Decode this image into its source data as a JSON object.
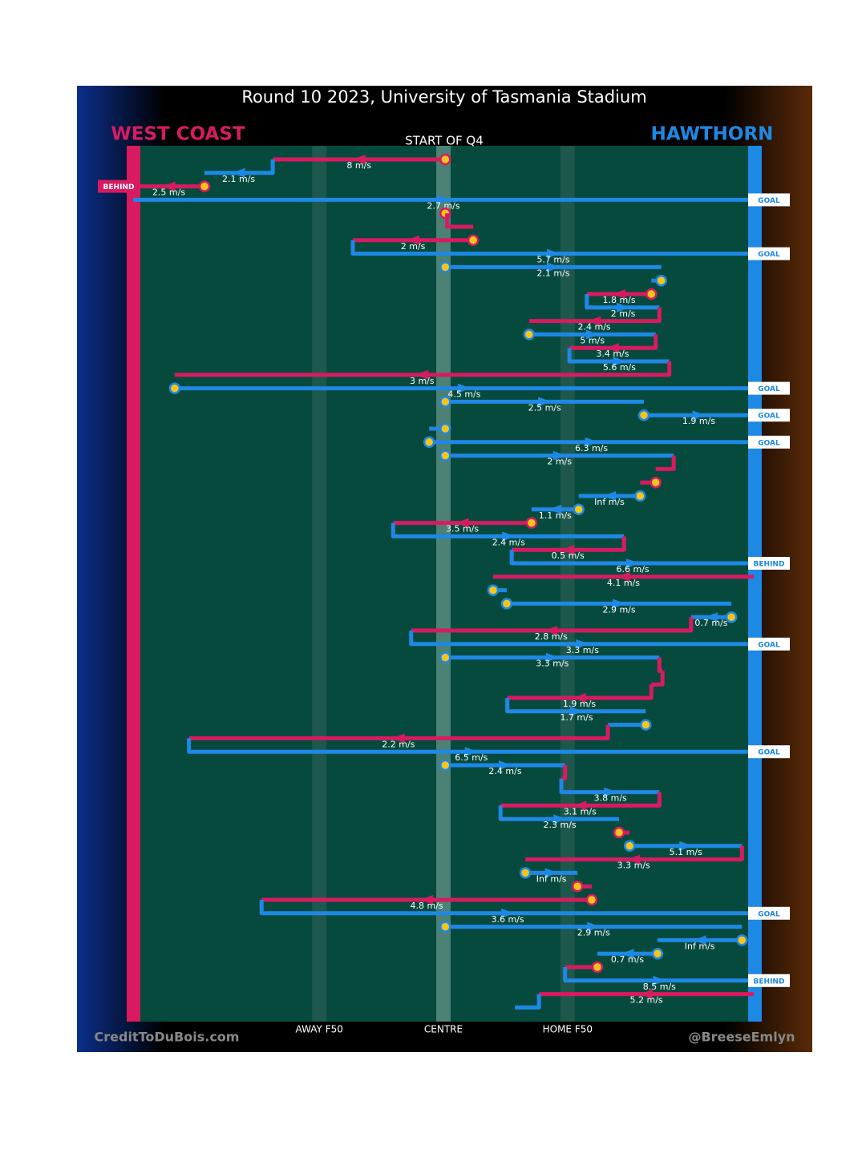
{
  "chart_data": {
    "type": "possession-flow",
    "title": "Round 10 2023, University of Tasmania Stadium",
    "subtitle": "START OF Q4",
    "teams": [
      {
        "name": "WEST COAST",
        "color": "#d81b60"
      },
      {
        "name": "HAWTHORN",
        "color": "#1e88e5"
      }
    ],
    "xlim": [
      0,
      100
    ],
    "xticks": [
      {
        "value": 30,
        "label": "AWAY F50"
      },
      {
        "value": 50,
        "label": "CENTRE"
      },
      {
        "value": 70,
        "label": "HOME F50"
      }
    ],
    "credits": [
      "CreditToDuBois.com",
      "@BreeseEmlyn"
    ],
    "segments": [
      {
        "team": 0,
        "from": 50.3,
        "to": 22.5,
        "speed": "8 m/s",
        "marker": true
      },
      {
        "team": 1,
        "from": 22.5,
        "to": 11.5,
        "speed": "2.1 m/s"
      },
      {
        "team": 0,
        "from": 11.5,
        "to": 0,
        "speed": "2.5 m/s",
        "marker": true,
        "outcome": "BEHIND"
      },
      {
        "team": 1,
        "from": 0,
        "to": 100,
        "speed": "2.7 m/s",
        "outcome": "GOAL"
      },
      {
        "team": 0,
        "from": 50.3,
        "to": 50.6,
        "marker": true
      },
      {
        "team": 0,
        "from": 50.6,
        "to": 54.8
      },
      {
        "team": 0,
        "from": 54.8,
        "to": 35.4,
        "speed": "2 m/s",
        "marker": true
      },
      {
        "team": 1,
        "from": 35.4,
        "to": 100,
        "speed": "5.7 m/s",
        "outcome": "GOAL"
      },
      {
        "team": 1,
        "from": 50.3,
        "to": 85.1,
        "speed": "2.1 m/s",
        "marker": true
      },
      {
        "team": 1,
        "from": 85.1,
        "to": 83.5,
        "marker": true
      },
      {
        "team": 0,
        "from": 83.5,
        "to": 73.1,
        "speed": "1.8 m/s",
        "marker": true
      },
      {
        "team": 1,
        "from": 73.1,
        "to": 84.8,
        "speed": "2 m/s"
      },
      {
        "team": 0,
        "from": 84.8,
        "to": 63.8,
        "speed": "2.4 m/s"
      },
      {
        "team": 1,
        "from": 63.8,
        "to": 84.2,
        "speed": "5 m/s",
        "marker": true
      },
      {
        "team": 0,
        "from": 84.2,
        "to": 70.3,
        "speed": "3.4 m/s"
      },
      {
        "team": 1,
        "from": 70.3,
        "to": 86.4,
        "speed": "5.6 m/s"
      },
      {
        "team": 0,
        "from": 86.4,
        "to": 6.7,
        "speed": "3 m/s"
      },
      {
        "team": 1,
        "from": 6.7,
        "to": 100,
        "speed": "4.5 m/s",
        "marker": true,
        "outcome": "GOAL"
      },
      {
        "team": 1,
        "from": 50.3,
        "to": 82.3,
        "speed": "2.5 m/s",
        "marker": true
      },
      {
        "team": 1,
        "from": 82.3,
        "to": 100,
        "speed": "1.9 m/s",
        "marker": true,
        "outcome": "GOAL"
      },
      {
        "team": 1,
        "from": 50.3,
        "to": 47.7,
        "marker": true
      },
      {
        "team": 1,
        "from": 47.7,
        "to": 100,
        "speed": "6.3 m/s",
        "marker": true,
        "outcome": "GOAL"
      },
      {
        "team": 1,
        "from": 50.3,
        "to": 87.1,
        "speed": "2 m/s",
        "marker": true
      },
      {
        "team": 0,
        "from": 87.1,
        "to": 84.2
      },
      {
        "team": 0,
        "from": 84.2,
        "to": 81.7,
        "marker": true
      },
      {
        "team": 1,
        "from": 81.7,
        "to": 71.8,
        "speed": "Inf m/s",
        "marker": true
      },
      {
        "team": 1,
        "from": 71.8,
        "to": 64.2,
        "speed": "1.1 m/s",
        "marker": true
      },
      {
        "team": 0,
        "from": 64.2,
        "to": 41.9,
        "speed": "3.5 m/s",
        "marker": true
      },
      {
        "team": 1,
        "from": 41.9,
        "to": 79.1,
        "speed": "2.4 m/s"
      },
      {
        "team": 0,
        "from": 79.1,
        "to": 61,
        "speed": "0.5 m/s"
      },
      {
        "team": 1,
        "from": 61,
        "to": 100,
        "speed": "6.6 m/s",
        "outcome": "BEHIND"
      },
      {
        "team": 0,
        "from": 100,
        "to": 58,
        "speed": "4.1 m/s"
      },
      {
        "team": 1,
        "from": 58,
        "to": 60.2,
        "marker": true
      },
      {
        "team": 1,
        "from": 60.2,
        "to": 96.4,
        "speed": "2.9 m/s",
        "marker": true
      },
      {
        "team": 1,
        "from": 96.4,
        "to": 89.9,
        "speed": "0.7 m/s",
        "marker": true
      },
      {
        "team": 0,
        "from": 89.9,
        "to": 44.8,
        "speed": "2.8 m/s"
      },
      {
        "team": 1,
        "from": 44.8,
        "to": 100,
        "speed": "3.3 m/s",
        "outcome": "GOAL"
      },
      {
        "team": 1,
        "from": 50.3,
        "to": 84.8,
        "speed": "3.3 m/s",
        "marker": true
      },
      {
        "team": 0,
        "from": 84.8,
        "to": 85.3
      },
      {
        "team": 0,
        "from": 85.3,
        "to": 83.5
      },
      {
        "team": 0,
        "from": 83.5,
        "to": 60.3,
        "speed": "1.9 m/s"
      },
      {
        "team": 1,
        "from": 60.3,
        "to": 82.6,
        "speed": "1.7 m/s"
      },
      {
        "team": 1,
        "from": 82.6,
        "to": 76.5,
        "marker": true
      },
      {
        "team": 0,
        "from": 76.5,
        "to": 9,
        "speed": "2.2 m/s"
      },
      {
        "team": 1,
        "from": 9,
        "to": 100,
        "speed": "6.5 m/s",
        "outcome": "GOAL"
      },
      {
        "team": 1,
        "from": 50.3,
        "to": 69.6,
        "speed": "2.4 m/s",
        "marker": true
      },
      {
        "team": 0,
        "from": 69.6,
        "to": 69
      },
      {
        "team": 1,
        "from": 69,
        "to": 84.8,
        "speed": "3.8 m/s"
      },
      {
        "team": 0,
        "from": 84.8,
        "to": 59.2,
        "speed": "3.1 m/s"
      },
      {
        "team": 1,
        "from": 59.2,
        "to": 78.3,
        "speed": "2.3 m/s"
      },
      {
        "team": 0,
        "from": 78.3,
        "to": 80,
        "marker": true
      },
      {
        "team": 1,
        "from": 80,
        "to": 98.1,
        "speed": "5.1 m/s",
        "marker": true
      },
      {
        "team": 0,
        "from": 98.1,
        "to": 63.2,
        "speed": "3.3 m/s"
      },
      {
        "team": 1,
        "from": 63.2,
        "to": 71.6,
        "speed": "Inf m/s",
        "marker": true
      },
      {
        "team": 0,
        "from": 71.6,
        "to": 73.9,
        "marker": true
      },
      {
        "team": 0,
        "from": 73.9,
        "to": 20.7,
        "speed": "4.8 m/s",
        "marker": true
      },
      {
        "team": 1,
        "from": 20.7,
        "to": 100,
        "speed": "3.6 m/s",
        "outcome": "GOAL"
      },
      {
        "team": 1,
        "from": 50.3,
        "to": 98.1,
        "speed": "2.9 m/s",
        "marker": true
      },
      {
        "team": 1,
        "from": 98.1,
        "to": 84.5,
        "speed": "Inf m/s",
        "marker": true
      },
      {
        "team": 1,
        "from": 84.5,
        "to": 74.8,
        "speed": "0.7 m/s",
        "marker": true
      },
      {
        "team": 0,
        "from": 74.8,
        "to": 69.6,
        "marker": true
      },
      {
        "team": 1,
        "from": 69.6,
        "to": 100,
        "speed": "8.5 m/s",
        "outcome": "BEHIND"
      },
      {
        "team": 0,
        "from": 100,
        "to": 65.4,
        "speed": "5.2 m/s"
      },
      {
        "team": 1,
        "from": 65.4,
        "to": 61.5
      }
    ]
  }
}
